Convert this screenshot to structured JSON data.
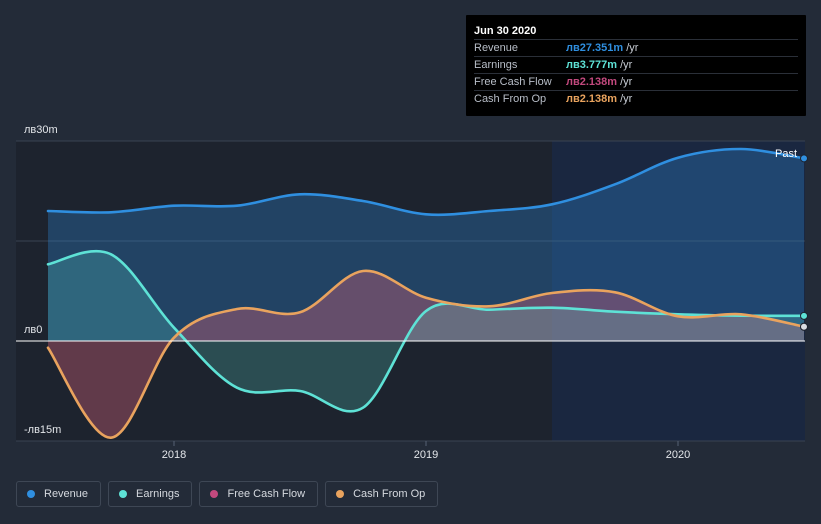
{
  "chart_data": {
    "type": "area",
    "currency_prefix": "лв",
    "y_axis": {
      "ylim": [
        -15,
        30
      ],
      "tick_labels": [
        "лв30m",
        "лв0",
        "-лв15m"
      ]
    },
    "x_axis": {
      "tick_labels": [
        "2018",
        "2019",
        "2020"
      ],
      "range": [
        2017.5,
        2020.5
      ]
    },
    "forecast_marker": {
      "label": "Past",
      "start": 2019.5
    },
    "series": [
      {
        "name": "Revenue",
        "color": "#2f8fe0",
        "points": [
          [
            2017.5,
            19.5
          ],
          [
            2017.75,
            19.3
          ],
          [
            2018,
            20.3
          ],
          [
            2018.25,
            20.3
          ],
          [
            2018.5,
            22
          ],
          [
            2018.75,
            21
          ],
          [
            2019,
            19
          ],
          [
            2019.25,
            19.5
          ],
          [
            2019.5,
            20.5
          ],
          [
            2019.75,
            23.5
          ],
          [
            2020,
            27.5
          ],
          [
            2020.25,
            28.8
          ],
          [
            2020.5,
            27.4
          ]
        ]
      },
      {
        "name": "Earnings",
        "color": "#5ee2d6",
        "points": [
          [
            2017.5,
            11.5
          ],
          [
            2017.75,
            13
          ],
          [
            2018,
            2
          ],
          [
            2018.25,
            -7
          ],
          [
            2018.5,
            -7.5
          ],
          [
            2018.75,
            -10
          ],
          [
            2019,
            4.5
          ],
          [
            2019.25,
            4.7
          ],
          [
            2019.5,
            5
          ],
          [
            2019.75,
            4.4
          ],
          [
            2020,
            4
          ],
          [
            2020.25,
            3.8
          ],
          [
            2020.5,
            3.777
          ]
        ]
      },
      {
        "name": "Free Cash Flow",
        "color": "#c3497e",
        "points": [
          [
            2017.5,
            -1
          ],
          [
            2017.75,
            -14.5
          ],
          [
            2018,
            0.5
          ],
          [
            2018.25,
            4.8
          ],
          [
            2018.5,
            4.3
          ],
          [
            2018.75,
            10.5
          ],
          [
            2019,
            6.5
          ],
          [
            2019.25,
            5.2
          ],
          [
            2019.5,
            7.2
          ],
          [
            2019.75,
            7.3
          ],
          [
            2020,
            3.7
          ],
          [
            2020.25,
            4
          ],
          [
            2020.5,
            2.138
          ]
        ]
      },
      {
        "name": "Cash From Op",
        "color": "#e9a35e",
        "points": [
          [
            2017.5,
            -1
          ],
          [
            2017.75,
            -14.5
          ],
          [
            2018,
            0.5
          ],
          [
            2018.25,
            4.8
          ],
          [
            2018.5,
            4.3
          ],
          [
            2018.75,
            10.5
          ],
          [
            2019,
            6.5
          ],
          [
            2019.25,
            5.2
          ],
          [
            2019.5,
            7.2
          ],
          [
            2019.75,
            7.3
          ],
          [
            2020,
            3.7
          ],
          [
            2020.25,
            4
          ],
          [
            2020.5,
            2.138
          ]
        ]
      }
    ]
  },
  "tooltip": {
    "date": "Jun 30 2020",
    "rows": [
      {
        "label": "Revenue",
        "value": "лв27.351m",
        "unit": "/yr",
        "color": "#2f8fe0"
      },
      {
        "label": "Earnings",
        "value": "лв3.777m",
        "unit": "/yr",
        "color": "#5ee2d6"
      },
      {
        "label": "Free Cash Flow",
        "value": "лв2.138m",
        "unit": "/yr",
        "color": "#c3497e"
      },
      {
        "label": "Cash From Op",
        "value": "лв2.138m",
        "unit": "/yr",
        "color": "#e9a35e"
      }
    ]
  },
  "legend": [
    {
      "label": "Revenue",
      "color": "#2f8fe0"
    },
    {
      "label": "Earnings",
      "color": "#5ee2d6"
    },
    {
      "label": "Free Cash Flow",
      "color": "#c3497e"
    },
    {
      "label": "Cash From Op",
      "color": "#e9a35e"
    }
  ]
}
